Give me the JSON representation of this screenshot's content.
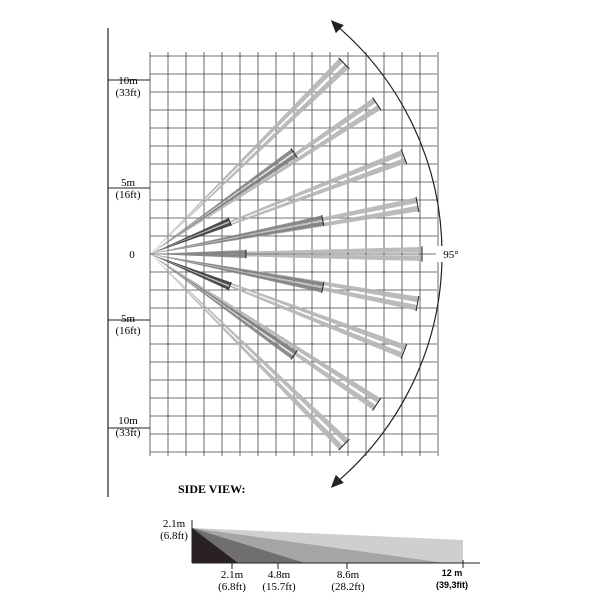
{
  "top_view": {
    "y_labels": [
      {
        "m": "10m",
        "ft": "(33ft)"
      },
      {
        "m": "5m",
        "ft": "(16ft)"
      },
      {
        "m": "0",
        "ft": ""
      },
      {
        "m": "5m",
        "ft": "(16ft)"
      },
      {
        "m": "10m",
        "ft": "(33ft)"
      }
    ],
    "angle_label": "95°"
  },
  "side_view": {
    "title": "SIDE VIEW:",
    "height_label": {
      "m": "2.1m",
      "ft": "(6.8ft)"
    },
    "distances": [
      {
        "m": "2.1m",
        "ft": "(6.8ft)"
      },
      {
        "m": "4.8m",
        "ft": "(15.7ft)"
      },
      {
        "m": "8.6m",
        "ft": "(28.2ft)"
      },
      {
        "m": "12 m",
        "ft": "(39,3fit)"
      }
    ]
  },
  "colors": {
    "long_beam": "#b4b4b4",
    "mid_beam": "#7a7a7a",
    "short_beam": "#3a3a3a",
    "grid": "#444444"
  }
}
